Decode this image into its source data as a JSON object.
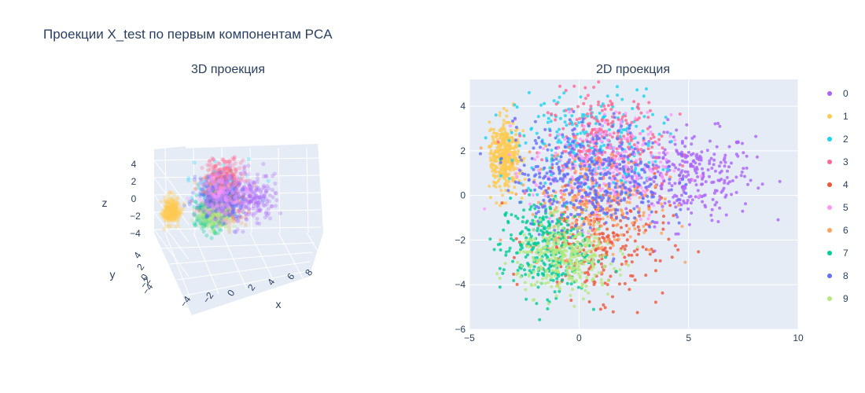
{
  "title": "Проекции X_test по первым компонентам PCA",
  "chart_data": [
    {
      "type": "scatter3d",
      "title": "3D проекция",
      "axes": {
        "x": {
          "label": "x",
          "ticks": [
            "−4",
            "−2",
            "0",
            "2",
            "4",
            "6",
            "8"
          ]
        },
        "y": {
          "label": "y",
          "ticks": [
            "−4",
            "−2",
            "0",
            "2",
            "4"
          ]
        },
        "z": {
          "label": "z",
          "ticks": [
            "4",
            "2",
            "0",
            "−2",
            "−4"
          ]
        }
      },
      "grid": true
    },
    {
      "type": "scatter",
      "title": "2D проекция",
      "xlim": [
        -5,
        10
      ],
      "ylim": [
        -6,
        5.2
      ],
      "xticks": [
        -5,
        0,
        5,
        10
      ],
      "yticks": [
        -6,
        -4,
        -2,
        0,
        2,
        4
      ],
      "xlabel": "",
      "ylabel": "",
      "legend": "right",
      "grid": true,
      "series": [
        {
          "name": "0",
          "color": "#AB63FA",
          "center": [
            5.0,
            0.9
          ],
          "spread": [
            1.5,
            1.0
          ],
          "count": 300
        },
        {
          "name": "1",
          "color": "#FECB52",
          "center": [
            -3.4,
            1.8
          ],
          "spread": [
            0.35,
            0.75
          ],
          "count": 380
        },
        {
          "name": "2",
          "color": "#19D3F3",
          "center": [
            0.4,
            2.3
          ],
          "spread": [
            1.6,
            1.2
          ],
          "count": 260
        },
        {
          "name": "3",
          "color": "#FF6692",
          "center": [
            1.2,
            2.2
          ],
          "spread": [
            1.3,
            1.2
          ],
          "count": 280
        },
        {
          "name": "4",
          "color": "#EF553B",
          "center": [
            1.0,
            -2.0
          ],
          "spread": [
            1.5,
            1.3
          ],
          "count": 260
        },
        {
          "name": "5",
          "color": "#FF97FF",
          "center": [
            1.0,
            1.2
          ],
          "spread": [
            1.6,
            1.2
          ],
          "count": 260
        },
        {
          "name": "6",
          "color": "#FFA15A",
          "center": [
            0.6,
            -0.4
          ],
          "spread": [
            1.5,
            1.2
          ],
          "count": 260
        },
        {
          "name": "7",
          "color": "#00CC96",
          "center": [
            -1.6,
            -2.3
          ],
          "spread": [
            1.0,
            1.1
          ],
          "count": 300
        },
        {
          "name": "8",
          "color": "#636EFA",
          "center": [
            0.5,
            0.8
          ],
          "spread": [
            1.7,
            1.2
          ],
          "count": 420
        },
        {
          "name": "9",
          "color": "#B6E880",
          "center": [
            -0.6,
            -2.8
          ],
          "spread": [
            1.1,
            0.8
          ],
          "count": 320
        }
      ]
    }
  ]
}
